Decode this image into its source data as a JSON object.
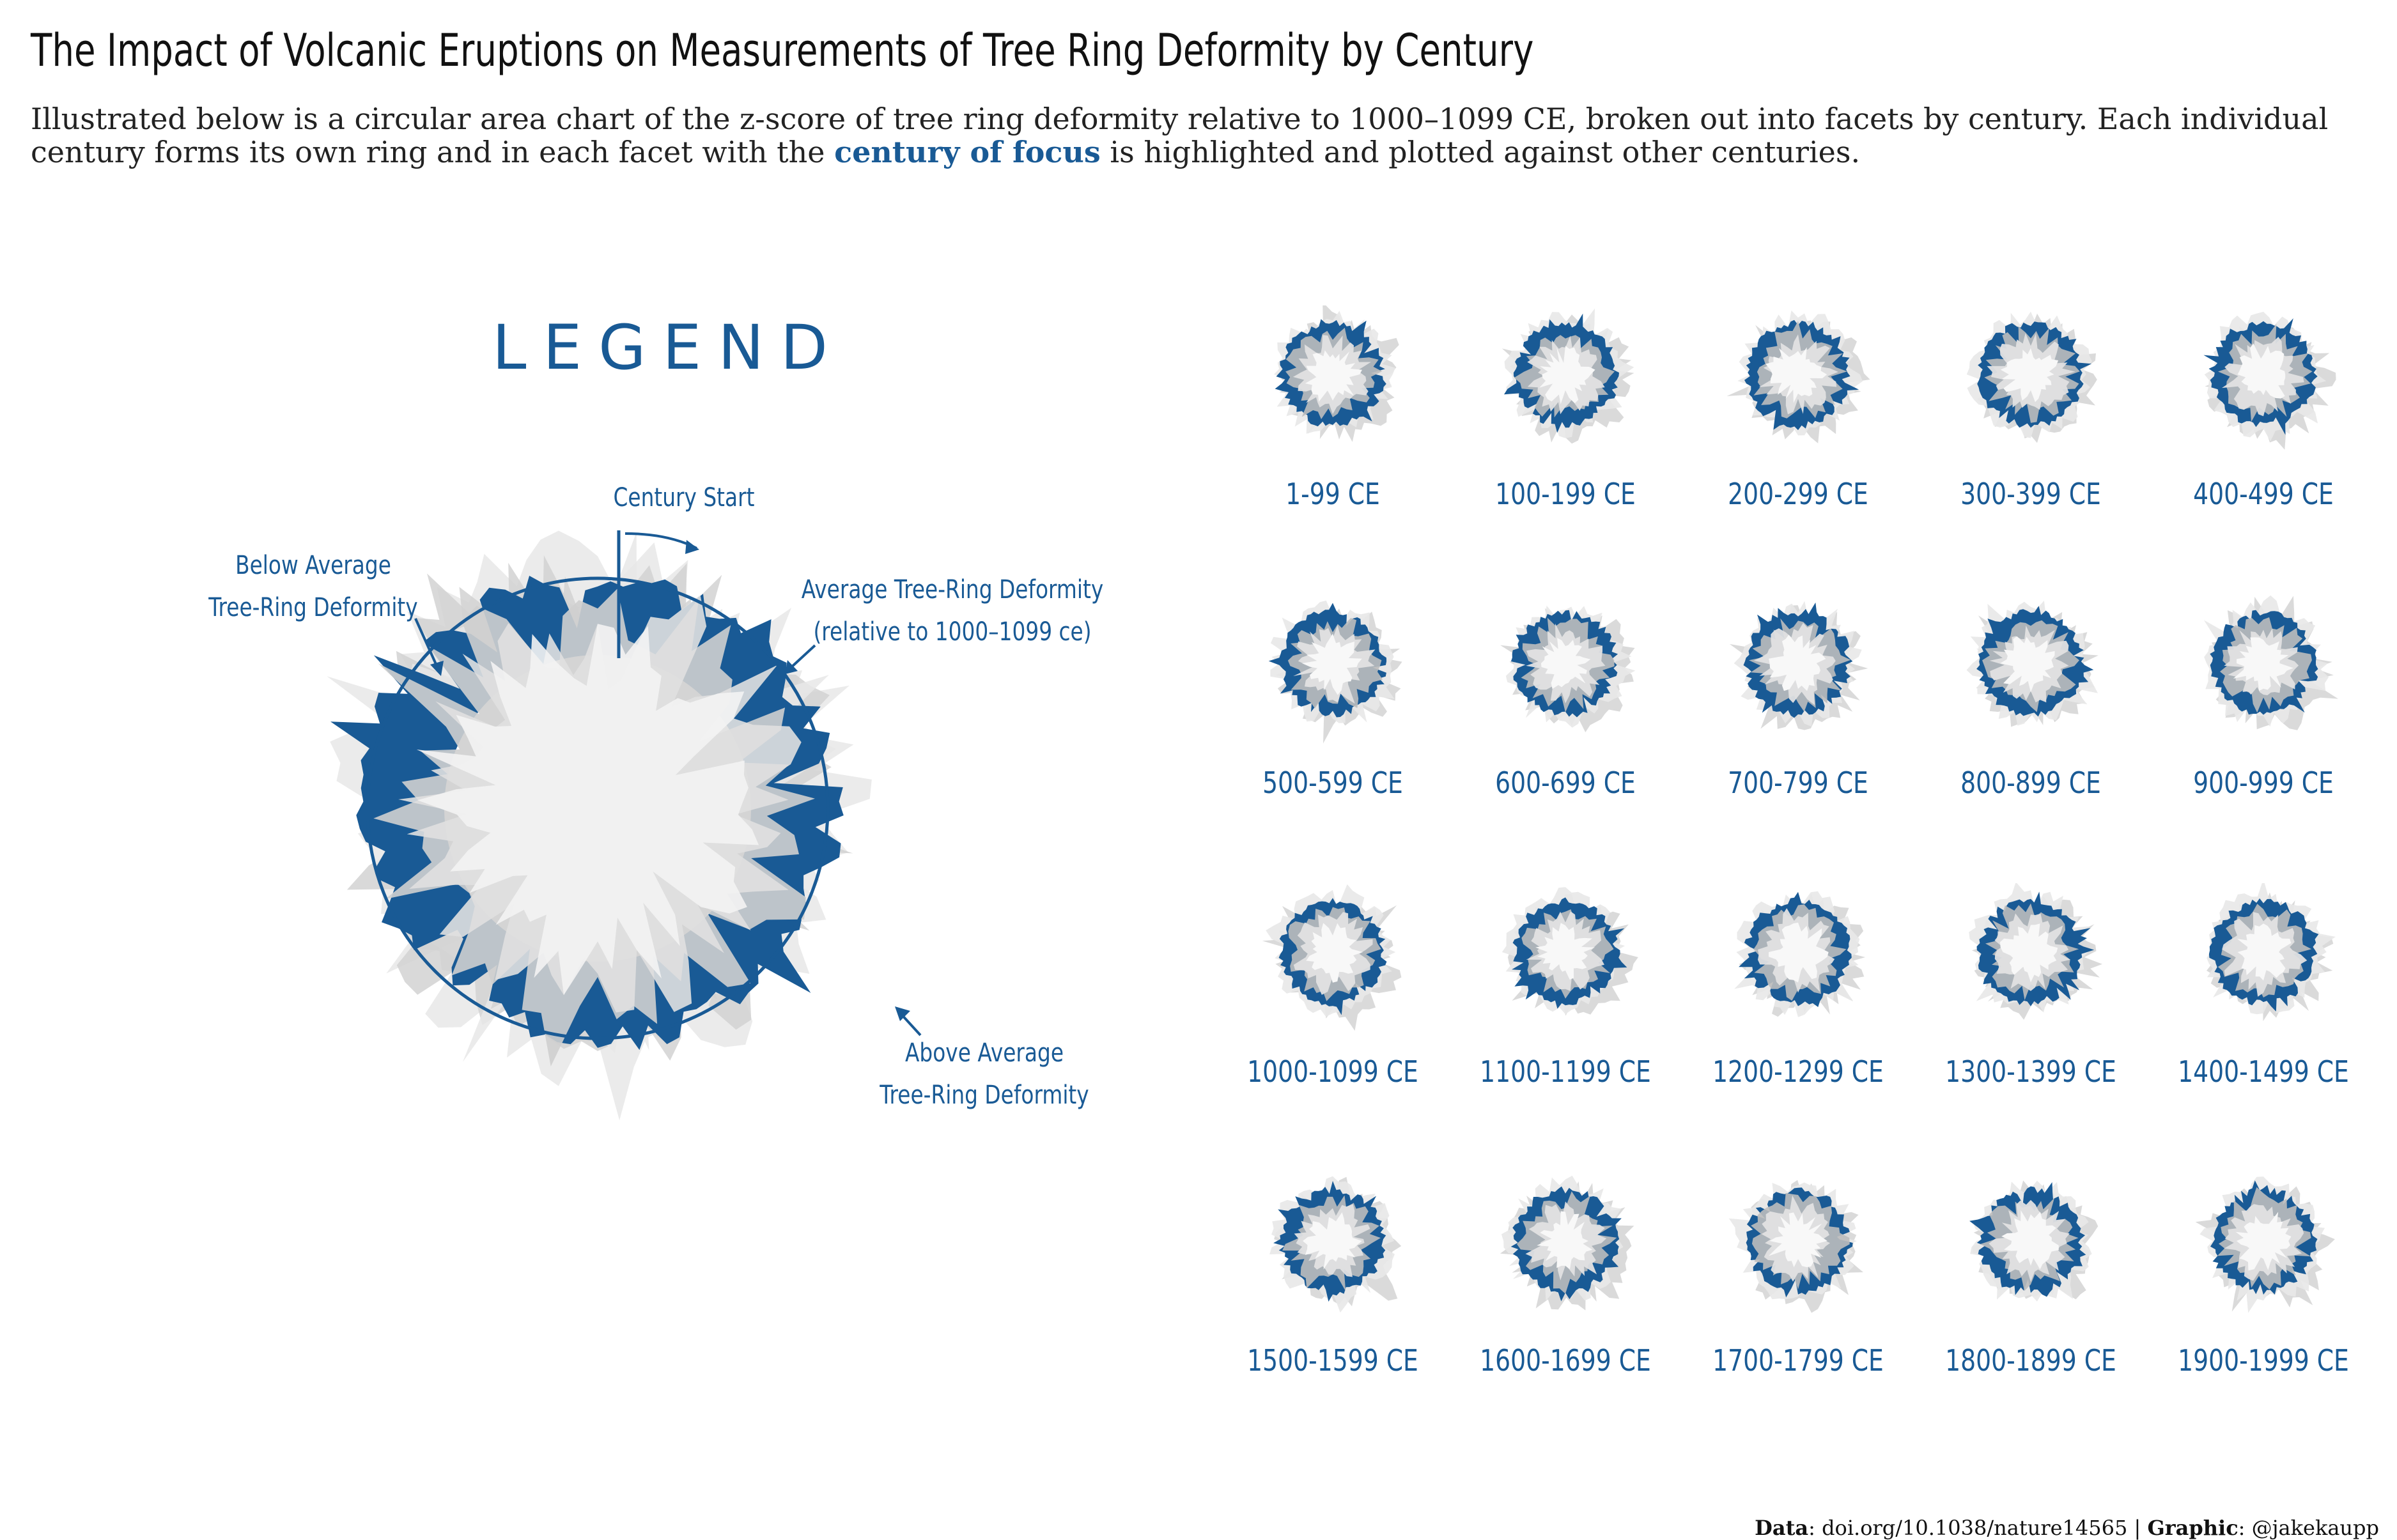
{
  "title": "The Impact of Volcanic Eruptions on Measurements of Tree Ring Deformity by Century",
  "subtitle": {
    "part1": "Illustrated below is a circular area chart of the z-score of tree ring deformity relative to 1000–1099 CE, broken out into facets by century. Each individual century forms its own ring and in each facet with the ",
    "highlight": "century of focus",
    "part2": " is highlighted and plotted against other centuries."
  },
  "colors": {
    "focus": "#195a95",
    "other_light": "#e9e9e9",
    "other_mid": "#c4c4c4",
    "title_text": "#111111"
  },
  "legend": {
    "title": "LEGEND",
    "century_start": "Century Start",
    "below_average_line1": "Below Average",
    "below_average_line2": "Tree-Ring Deformity",
    "average_line1": "Average Tree-Ring Deformity",
    "average_line2": "(relative to 1000–1099 ce)",
    "above_average_line1": "Above Average",
    "above_average_line2": "Tree-Ring Deformity"
  },
  "chart_data": {
    "type": "area",
    "coordinate_system": "polar",
    "measure": "z-score of tree ring deformity relative to 1000–1099 CE",
    "facets": [
      {
        "label": "1-99 CE",
        "seed": 11
      },
      {
        "label": "100-199 CE",
        "seed": 23
      },
      {
        "label": "200-299 CE",
        "seed": 37
      },
      {
        "label": "300-399 CE",
        "seed": 41
      },
      {
        "label": "400-499 CE",
        "seed": 53
      },
      {
        "label": "500-599 CE",
        "seed": 67
      },
      {
        "label": "600-699 CE",
        "seed": 71
      },
      {
        "label": "700-799 CE",
        "seed": 83
      },
      {
        "label": "800-899 CE",
        "seed": 97
      },
      {
        "label": "900-999 CE",
        "seed": 101
      },
      {
        "label": "1000-1099 CE",
        "seed": 113
      },
      {
        "label": "1100-1199 CE",
        "seed": 127
      },
      {
        "label": "1200-1299 CE",
        "seed": 131
      },
      {
        "label": "1300-1399 CE",
        "seed": 149
      },
      {
        "label": "1400-1499 CE",
        "seed": 151
      },
      {
        "label": "1500-1599 CE",
        "seed": 163
      },
      {
        "label": "1600-1699 CE",
        "seed": 173
      },
      {
        "label": "1700-1799 CE",
        "seed": 181
      },
      {
        "label": "1800-1899 CE",
        "seed": 191
      },
      {
        "label": "1900-1999 CE",
        "seed": 199
      }
    ]
  },
  "footer": {
    "data_label": "Data",
    "data_value": ": doi.org/10.1038/nature14565 | ",
    "graphic_label": "Graphic",
    "graphic_value": ": @jakekaupp"
  }
}
